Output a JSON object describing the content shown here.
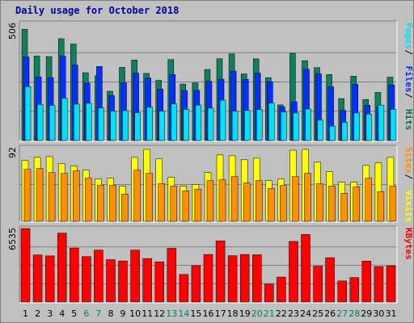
{
  "chart_data": {
    "type": "bar",
    "title": "Daily usage for October 2018",
    "categories": [
      "1",
      "2",
      "3",
      "4",
      "5",
      "6",
      "7",
      "8",
      "9",
      "10",
      "11",
      "12",
      "13",
      "14",
      "15",
      "16",
      "17",
      "18",
      "19",
      "20",
      "21",
      "22",
      "23",
      "24",
      "25",
      "26",
      "27",
      "28",
      "29",
      "30",
      "31"
    ],
    "weekend_days": [
      "6",
      "7",
      "13",
      "14",
      "20",
      "21",
      "27",
      "28"
    ],
    "panels": [
      {
        "name": "hits-files-pages",
        "ymax_label": "506",
        "ylim": [
          0,
          506
        ],
        "legend": [
          {
            "text": "Pages",
            "color": "#00e0ff"
          },
          {
            "text": "Files",
            "color": "#0030ff"
          },
          {
            "text": "Hits",
            "color": "#006f50"
          }
        ],
        "series": [
          {
            "name": "Hits",
            "color": "#107f5f",
            "values": [
              481,
              365,
              363,
              440,
              417,
              293,
              280,
              213,
              316,
              348,
              290,
              260,
              350,
              244,
              249,
              307,
              353,
              374,
              288,
              353,
              272,
              154,
              377,
              345,
              315,
              285,
              181,
              278,
              177,
              208,
              274
            ]
          },
          {
            "name": "Files",
            "color": "#0030ff",
            "values": [
              361,
              275,
              272,
              364,
              326,
              248,
              320,
              194,
              250,
              291,
              270,
              222,
              285,
              216,
              217,
              256,
              265,
              300,
              264,
              291,
              254,
              145,
              167,
              308,
              288,
              232,
              130,
              243,
              152,
              143,
              240
            ]
          },
          {
            "name": "Pages",
            "color": "#00e0ff",
            "values": [
              233,
              156,
              152,
              182,
              157,
              161,
              141,
              127,
              129,
              120,
              144,
              127,
              158,
              135,
              153,
              140,
              174,
              127,
              130,
              134,
              162,
              123,
              119,
              136,
              88,
              62,
              79,
              119,
              114,
              153,
              135
            ]
          }
        ]
      },
      {
        "name": "visits-sites",
        "ymax_label": "92",
        "ylim": [
          0,
          92
        ],
        "legend": [
          {
            "text": "Sites",
            "color": "#ff9000"
          },
          {
            "text": "Visits",
            "color": "#ffff00"
          }
        ],
        "series": [
          {
            "name": "Visits",
            "color": "#ffff00",
            "values": [
              76,
              80,
              81,
              72,
              69,
              64,
              53,
              54,
              44,
              80,
              90,
              78,
              55,
              44,
              46,
              61,
              83,
              82,
              77,
              79,
              51,
              53,
              89,
              90,
              74,
              62,
              49,
              49,
              70,
              73,
              80
            ]
          },
          {
            "name": "Sites",
            "color": "#ff9000",
            "values": [
              65,
              66,
              61,
              60,
              63,
              54,
              45,
              45,
              34,
              64,
              60,
              47,
              44,
              38,
              40,
              51,
              52,
              56,
              48,
              51,
              41,
              45,
              56,
              60,
              47,
              44,
              35,
              43,
              54,
              37,
              44
            ]
          }
        ]
      },
      {
        "name": "kbytes",
        "ymax_label": "6535",
        "ylim": [
          0,
          6535
        ],
        "legend": [
          {
            "text": "KBytes",
            "color": "#ff0000"
          }
        ],
        "series": [
          {
            "name": "KBytes",
            "color": "#ff0000",
            "values": [
              6535,
              4190,
              4100,
              6125,
              4805,
              4040,
              4610,
              3770,
              3650,
              4620,
              3870,
              3570,
              4775,
              2450,
              3235,
              4230,
              5427,
              4120,
              4230,
              4198,
              1600,
              2220,
              5385,
              6002,
              3188,
              3940,
              1875,
              2175,
              3640,
              3155,
              3220
            ]
          }
        ]
      }
    ]
  }
}
